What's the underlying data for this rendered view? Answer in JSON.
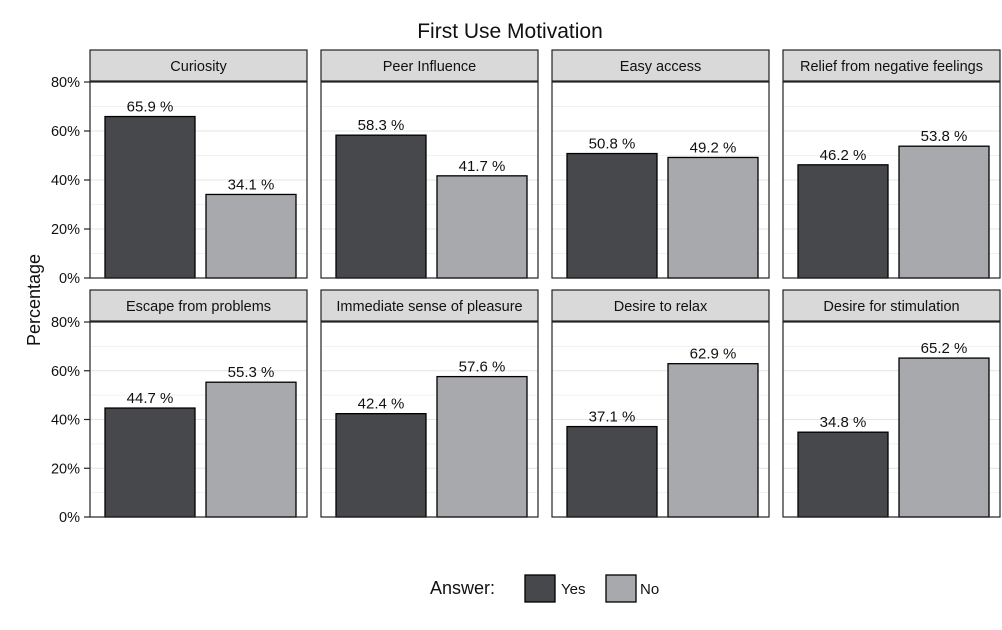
{
  "chart_data": {
    "type": "bar",
    "title": "First Use Motivation",
    "xlabel": "",
    "ylabel": "Percentage",
    "ylim": [
      0,
      80
    ],
    "y_ticks": [
      "0%",
      "20%",
      "40%",
      "60%",
      "80%"
    ],
    "categories": [
      "Yes",
      "No"
    ],
    "value_suffix": " %",
    "grid": true,
    "legend": {
      "title": "Answer:",
      "placement": "bottom",
      "entries": [
        {
          "label": "Yes",
          "color": "#47484c"
        },
        {
          "label": "No",
          "color": "#a7a9ac"
        }
      ]
    },
    "colors": {
      "yes": "#47484c",
      "no": "#a7a9ac",
      "strip": "#d9d9d9"
    },
    "panels": [
      {
        "title": "Curiosity",
        "values": [
          65.9,
          34.1
        ]
      },
      {
        "title": "Peer Influence",
        "values": [
          58.3,
          41.7
        ]
      },
      {
        "title": "Easy access",
        "values": [
          50.8,
          49.2
        ]
      },
      {
        "title": "Relief from negative feelings",
        "values": [
          46.2,
          53.8
        ]
      },
      {
        "title": "Escape from problems",
        "values": [
          44.7,
          55.3
        ]
      },
      {
        "title": "Immediate sense of pleasure",
        "values": [
          42.4,
          57.6
        ]
      },
      {
        "title": "Desire to relax",
        "values": [
          37.1,
          62.9
        ]
      },
      {
        "title": "Desire for stimulation",
        "values": [
          34.8,
          65.2
        ]
      }
    ]
  }
}
